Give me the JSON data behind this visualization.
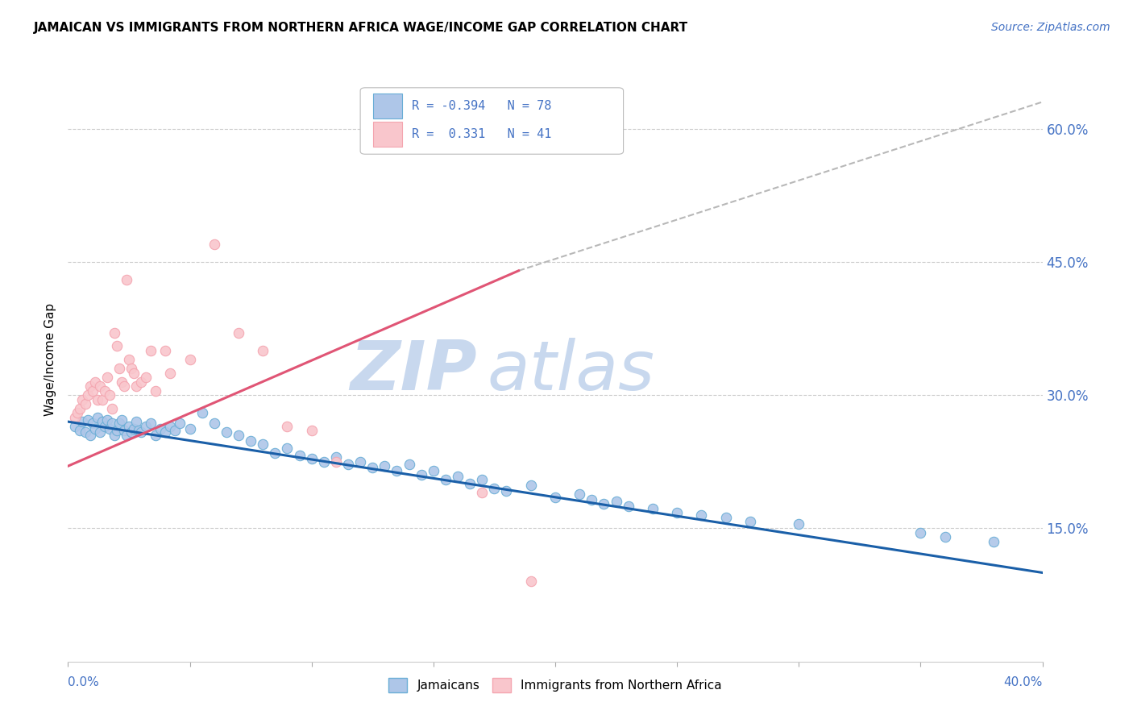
{
  "title": "JAMAICAN VS IMMIGRANTS FROM NORTHERN AFRICA WAGE/INCOME GAP CORRELATION CHART",
  "source_text": "Source: ZipAtlas.com",
  "ylabel": "Wage/Income Gap",
  "right_yticks": [
    "15.0%",
    "30.0%",
    "45.0%",
    "60.0%"
  ],
  "right_ytick_vals": [
    0.15,
    0.3,
    0.45,
    0.6
  ],
  "xmin": 0.0,
  "xmax": 0.4,
  "ymin": 0.0,
  "ymax": 0.68,
  "blue_color": "#6aaed6",
  "blue_face": "#aec6e8",
  "pink_color": "#f4a5b0",
  "pink_face": "#f9c6cc",
  "trend_blue_color": "#1a5fa8",
  "trend_pink_color": "#e05575",
  "trend_gray_color": "#b8b8b8",
  "watermark_color": "#c8d8ee",
  "blue_scatter": [
    [
      0.003,
      0.265
    ],
    [
      0.005,
      0.26
    ],
    [
      0.006,
      0.27
    ],
    [
      0.007,
      0.258
    ],
    [
      0.008,
      0.272
    ],
    [
      0.009,
      0.255
    ],
    [
      0.01,
      0.268
    ],
    [
      0.011,
      0.262
    ],
    [
      0.012,
      0.275
    ],
    [
      0.013,
      0.258
    ],
    [
      0.014,
      0.27
    ],
    [
      0.015,
      0.265
    ],
    [
      0.016,
      0.272
    ],
    [
      0.017,
      0.262
    ],
    [
      0.018,
      0.268
    ],
    [
      0.019,
      0.255
    ],
    [
      0.02,
      0.26
    ],
    [
      0.021,
      0.268
    ],
    [
      0.022,
      0.272
    ],
    [
      0.023,
      0.26
    ],
    [
      0.024,
      0.255
    ],
    [
      0.025,
      0.265
    ],
    [
      0.026,
      0.258
    ],
    [
      0.027,
      0.262
    ],
    [
      0.028,
      0.27
    ],
    [
      0.029,
      0.26
    ],
    [
      0.03,
      0.258
    ],
    [
      0.032,
      0.265
    ],
    [
      0.034,
      0.268
    ],
    [
      0.036,
      0.255
    ],
    [
      0.038,
      0.262
    ],
    [
      0.04,
      0.258
    ],
    [
      0.042,
      0.265
    ],
    [
      0.044,
      0.26
    ],
    [
      0.046,
      0.268
    ],
    [
      0.05,
      0.262
    ],
    [
      0.055,
      0.28
    ],
    [
      0.06,
      0.268
    ],
    [
      0.065,
      0.258
    ],
    [
      0.07,
      0.255
    ],
    [
      0.075,
      0.248
    ],
    [
      0.08,
      0.245
    ],
    [
      0.085,
      0.235
    ],
    [
      0.09,
      0.24
    ],
    [
      0.095,
      0.232
    ],
    [
      0.1,
      0.228
    ],
    [
      0.105,
      0.225
    ],
    [
      0.11,
      0.23
    ],
    [
      0.115,
      0.222
    ],
    [
      0.12,
      0.225
    ],
    [
      0.125,
      0.218
    ],
    [
      0.13,
      0.22
    ],
    [
      0.135,
      0.215
    ],
    [
      0.14,
      0.222
    ],
    [
      0.145,
      0.21
    ],
    [
      0.15,
      0.215
    ],
    [
      0.155,
      0.205
    ],
    [
      0.16,
      0.208
    ],
    [
      0.165,
      0.2
    ],
    [
      0.17,
      0.205
    ],
    [
      0.175,
      0.195
    ],
    [
      0.18,
      0.192
    ],
    [
      0.19,
      0.198
    ],
    [
      0.2,
      0.185
    ],
    [
      0.21,
      0.188
    ],
    [
      0.215,
      0.182
    ],
    [
      0.22,
      0.178
    ],
    [
      0.225,
      0.18
    ],
    [
      0.23,
      0.175
    ],
    [
      0.24,
      0.172
    ],
    [
      0.25,
      0.168
    ],
    [
      0.26,
      0.165
    ],
    [
      0.27,
      0.162
    ],
    [
      0.28,
      0.158
    ],
    [
      0.3,
      0.155
    ],
    [
      0.35,
      0.145
    ],
    [
      0.36,
      0.14
    ],
    [
      0.38,
      0.135
    ]
  ],
  "pink_scatter": [
    [
      0.003,
      0.275
    ],
    [
      0.004,
      0.28
    ],
    [
      0.005,
      0.285
    ],
    [
      0.006,
      0.295
    ],
    [
      0.007,
      0.29
    ],
    [
      0.008,
      0.3
    ],
    [
      0.009,
      0.31
    ],
    [
      0.01,
      0.305
    ],
    [
      0.011,
      0.315
    ],
    [
      0.012,
      0.295
    ],
    [
      0.013,
      0.31
    ],
    [
      0.014,
      0.295
    ],
    [
      0.015,
      0.305
    ],
    [
      0.016,
      0.32
    ],
    [
      0.017,
      0.3
    ],
    [
      0.018,
      0.285
    ],
    [
      0.019,
      0.37
    ],
    [
      0.02,
      0.355
    ],
    [
      0.021,
      0.33
    ],
    [
      0.022,
      0.315
    ],
    [
      0.023,
      0.31
    ],
    [
      0.024,
      0.43
    ],
    [
      0.025,
      0.34
    ],
    [
      0.026,
      0.33
    ],
    [
      0.027,
      0.325
    ],
    [
      0.028,
      0.31
    ],
    [
      0.03,
      0.315
    ],
    [
      0.032,
      0.32
    ],
    [
      0.034,
      0.35
    ],
    [
      0.036,
      0.305
    ],
    [
      0.04,
      0.35
    ],
    [
      0.042,
      0.325
    ],
    [
      0.05,
      0.34
    ],
    [
      0.06,
      0.47
    ],
    [
      0.07,
      0.37
    ],
    [
      0.08,
      0.35
    ],
    [
      0.09,
      0.265
    ],
    [
      0.1,
      0.26
    ],
    [
      0.11,
      0.225
    ],
    [
      0.17,
      0.19
    ],
    [
      0.19,
      0.09
    ]
  ],
  "gray_line": {
    "x0": 0.2,
    "y0": 0.42,
    "x1": 0.4,
    "y1": 0.6
  }
}
